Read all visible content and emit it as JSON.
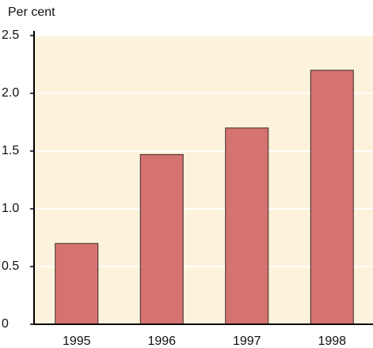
{
  "chart_data": {
    "type": "bar",
    "y_label": "Per cent",
    "categories": [
      "1995",
      "1996",
      "1997",
      "1998"
    ],
    "values": [
      0.7,
      1.47,
      1.7,
      2.2
    ],
    "color": "#d4736f",
    "background": "#fdf3dc",
    "ylim": [
      0,
      2.5
    ],
    "yticks": [
      0,
      0.5,
      {
        "value": 1,
        "label": "1.0"
      },
      1.5,
      {
        "value": 2,
        "label": "2.0"
      },
      2.5
    ],
    "grid": true
  }
}
